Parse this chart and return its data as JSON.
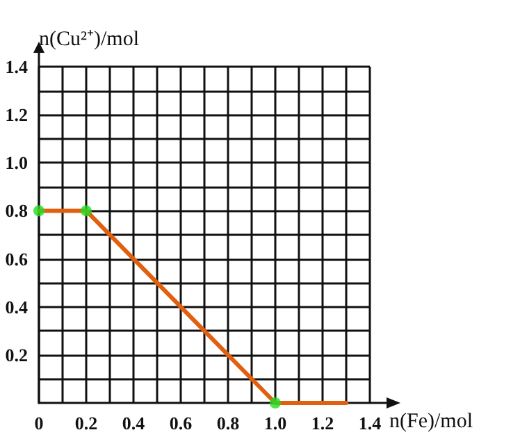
{
  "chart_data": {
    "type": "line",
    "xlabel": "n(Fe)/mol",
    "ylabel": "n(Cu²⁺)/mol",
    "x": [
      0,
      0.2,
      1.0,
      1.3
    ],
    "series": [
      {
        "color": "#e06010",
        "marker": "none",
        "values": [
          0.8,
          0.8,
          0,
          0
        ]
      },
      {
        "type": "scatter",
        "color": "#22dd22",
        "marker": "circle",
        "x": [
          0,
          0.2,
          1.0
        ],
        "values": [
          0.8,
          0.8,
          0
        ]
      }
    ],
    "xlim": [
      0,
      1.4
    ],
    "ylim": [
      0,
      1.4
    ],
    "xticks": [
      0,
      {
        "value": 0.1,
        "label": null
      },
      0.2,
      {
        "value": 0.3,
        "label": null
      },
      0.4,
      {
        "value": 0.5,
        "label": null
      },
      0.6,
      {
        "value": 0.7,
        "label": null
      },
      0.8,
      {
        "value": 0.9,
        "label": null
      },
      {
        "value": 1.0,
        "label": "1.0"
      },
      {
        "value": 1.1,
        "label": null
      },
      1.2,
      {
        "value": 1.3,
        "label": null
      },
      1.4
    ],
    "yticks": [
      {
        "value": 0.1,
        "label": null
      },
      0.2,
      {
        "value": 0.3,
        "label": null
      },
      0.4,
      {
        "value": 0.5,
        "label": null
      },
      0.6,
      {
        "value": 0.7,
        "label": null
      },
      0.8,
      {
        "value": 0.9,
        "label": null
      },
      {
        "value": 1.0,
        "label": "1.0"
      },
      {
        "value": 1.1,
        "label": null
      },
      1.2,
      {
        "value": 1.3,
        "label": null
      },
      1.4
    ],
    "grid": true
  }
}
